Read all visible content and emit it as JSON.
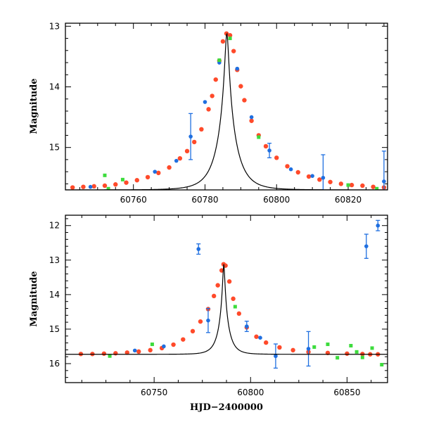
{
  "colors": {
    "curve": "#000000",
    "series_blue": "#1f6fe0",
    "series_red": "#ff4a2a",
    "series_green": "#3ddc3d",
    "frame": "#000000"
  },
  "chart_data": [
    {
      "type": "scatter",
      "panel": "top",
      "title": "",
      "xlabel": "",
      "ylabel": "Magnitude",
      "xlim": [
        60741,
        60831
      ],
      "ylim": [
        15.7,
        12.95
      ],
      "y_inverted": true,
      "xticks": [
        60760,
        60780,
        60800,
        60820
      ],
      "xtick_labels": [
        "60760",
        "60780",
        "60800",
        "60820"
      ],
      "yticks": [
        13,
        14,
        15
      ],
      "ytick_labels": [
        "13",
        "14",
        "15"
      ],
      "model_curve": {
        "t0": 60786.1,
        "peak_mag": 13.12,
        "base_mag": 15.7,
        "tE": 5.1
      },
      "series": [
        {
          "color_key": "series_red",
          "points": [
            [
              60743,
              15.66
            ],
            [
              60746,
              15.65
            ],
            [
              60749,
              15.64
            ],
            [
              60752,
              15.63
            ],
            [
              60755,
              15.61
            ],
            [
              60758,
              15.58
            ],
            [
              60761,
              15.54
            ],
            [
              60764,
              15.49
            ],
            [
              60767,
              15.42
            ],
            [
              60770,
              15.33
            ],
            [
              60773,
              15.18
            ],
            [
              60775,
              15.06
            ],
            [
              60777,
              14.91
            ],
            [
              60779,
              14.7
            ],
            [
              60781,
              14.37
            ],
            [
              60782,
              14.15
            ],
            [
              60783,
              13.88
            ],
            [
              60784,
              13.57
            ],
            [
              60785,
              13.25
            ],
            [
              60786,
              13.12
            ],
            [
              60787,
              13.15
            ],
            [
              60788,
              13.41
            ],
            [
              60789,
              13.72
            ],
            [
              60790,
              13.99
            ],
            [
              60791,
              14.22
            ],
            [
              60793,
              14.56
            ],
            [
              60795,
              14.8
            ],
            [
              60797,
              14.98
            ],
            [
              60800,
              15.17
            ],
            [
              60803,
              15.31
            ],
            [
              60806,
              15.41
            ],
            [
              60809,
              15.48
            ],
            [
              60812,
              15.53
            ],
            [
              60815,
              15.57
            ],
            [
              60818,
              15.6
            ],
            [
              60821,
              15.62
            ],
            [
              60824,
              15.63
            ],
            [
              60827,
              15.65
            ],
            [
              60830,
              15.66
            ]
          ]
        },
        {
          "color_key": "series_blue",
          "points": [
            [
              60748,
              15.65
            ],
            [
              60766,
              15.4
            ],
            [
              60772,
              15.22
            ],
            [
              60776,
              14.82
            ],
            [
              60780,
              14.25
            ],
            [
              60784,
              13.6
            ],
            [
              60789,
              13.7
            ],
            [
              60793,
              14.5
            ],
            [
              60798,
              15.05
            ],
            [
              60804,
              15.36
            ],
            [
              60810,
              15.47
            ],
            [
              60813,
              15.5
            ],
            [
              60830,
              15.56
            ]
          ],
          "errors": [
            0,
            0,
            0,
            0.38,
            0,
            0,
            0,
            0,
            0.12,
            0,
            0,
            0.38,
            0.5
          ]
        },
        {
          "color_key": "series_green",
          "points": [
            [
              60752,
              15.46
            ],
            [
              60753,
              15.68
            ],
            [
              60757,
              15.53
            ],
            [
              60784,
              13.56
            ],
            [
              60787,
              13.2
            ],
            [
              60795,
              14.83
            ],
            [
              60820,
              15.62
            ],
            [
              60828,
              15.68
            ]
          ]
        }
      ]
    },
    {
      "type": "scatter",
      "panel": "bottom",
      "title": "",
      "xlabel": "HJD−2400000",
      "ylabel": "Magnitude",
      "xlim": [
        60704,
        60871
      ],
      "ylim": [
        16.55,
        11.7
      ],
      "y_inverted": true,
      "xticks": [
        60750,
        60800,
        60850
      ],
      "xtick_labels": [
        "60750",
        "60800",
        "60850"
      ],
      "yticks": [
        12,
        13,
        14,
        15,
        16
      ],
      "ytick_labels": [
        "12",
        "13",
        "14",
        "15",
        "16"
      ],
      "model_curve": {
        "t0": 60786.1,
        "peak_mag": 13.12,
        "base_mag": 15.73,
        "tE": 5.1
      },
      "series": [
        {
          "color_key": "series_red",
          "points": [
            [
              60712,
              15.72
            ],
            [
              60718,
              15.72
            ],
            [
              60724,
              15.71
            ],
            [
              60730,
              15.7
            ],
            [
              60736,
              15.68
            ],
            [
              60742,
              15.65
            ],
            [
              60748,
              15.61
            ],
            [
              60754,
              15.55
            ],
            [
              60760,
              15.45
            ],
            [
              60765,
              15.3
            ],
            [
              60770,
              15.06
            ],
            [
              60774,
              14.78
            ],
            [
              60778,
              14.42
            ],
            [
              60781,
              14.04
            ],
            [
              60783,
              13.73
            ],
            [
              60785,
              13.3
            ],
            [
              60786,
              13.12
            ],
            [
              60787,
              13.16
            ],
            [
              60789,
              13.62
            ],
            [
              60791,
              14.12
            ],
            [
              60794,
              14.55
            ],
            [
              60798,
              14.95
            ],
            [
              60803,
              15.22
            ],
            [
              60808,
              15.39
            ],
            [
              60815,
              15.53
            ],
            [
              60822,
              15.61
            ],
            [
              60830,
              15.66
            ],
            [
              60840,
              15.69
            ],
            [
              60850,
              15.71
            ],
            [
              60858,
              15.72
            ],
            [
              60862,
              15.73
            ],
            [
              60866,
              15.73
            ]
          ]
        },
        {
          "color_key": "series_blue",
          "points": [
            [
              60773,
              12.68
            ],
            [
              60778,
              14.75
            ],
            [
              60798,
              14.92
            ],
            [
              60813,
              15.78
            ],
            [
              60830,
              15.57
            ],
            [
              60860,
              12.6
            ],
            [
              60866,
              12.0
            ],
            [
              60740,
              15.62
            ],
            [
              60755,
              15.5
            ],
            [
              60805,
              15.25
            ]
          ],
          "errors": [
            0.15,
            0.35,
            0.15,
            0.35,
            0.5,
            0.35,
            0.15,
            0,
            0,
            0
          ]
        },
        {
          "color_key": "series_green",
          "points": [
            [
              60727,
              15.78
            ],
            [
              60749,
              15.44
            ],
            [
              60792,
              14.35
            ],
            [
              60833,
              15.52
            ],
            [
              60840,
              15.44
            ],
            [
              60845,
              15.83
            ],
            [
              60852,
              15.48
            ],
            [
              60855,
              15.66
            ],
            [
              60858,
              15.82
            ],
            [
              60863,
              15.55
            ],
            [
              60868,
              16.03
            ]
          ]
        }
      ]
    }
  ]
}
